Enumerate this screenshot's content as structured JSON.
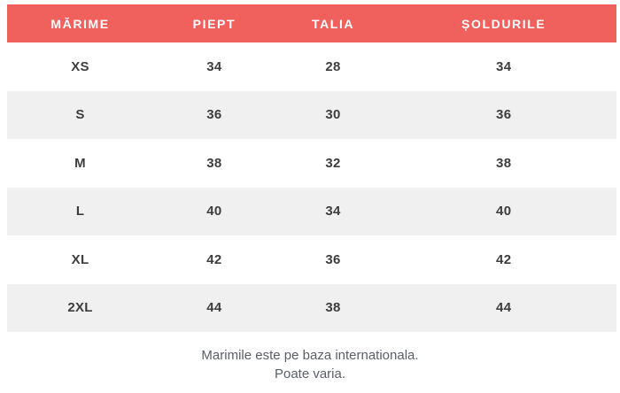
{
  "table": {
    "columns": [
      {
        "label": "MĂRIME"
      },
      {
        "label": "PIEPT"
      },
      {
        "label": "TALIA"
      },
      {
        "label": "ȘOLDURILE"
      }
    ],
    "rows": [
      {
        "size": "XS",
        "chest": "34",
        "waist": "28",
        "hips": "34"
      },
      {
        "size": "S",
        "chest": "36",
        "waist": "30",
        "hips": "36"
      },
      {
        "size": "M",
        "chest": "38",
        "waist": "32",
        "hips": "38"
      },
      {
        "size": "L",
        "chest": "40",
        "waist": "34",
        "hips": "40"
      },
      {
        "size": "XL",
        "chest": "42",
        "waist": "36",
        "hips": "42"
      },
      {
        "size": "2XL",
        "chest": "44",
        "waist": "38",
        "hips": "44"
      }
    ]
  },
  "footer": {
    "line1": "Marimile este pe baza internationala.",
    "line2": "Poate varia."
  },
  "colors": {
    "header_bg": "#f0605d",
    "header_text": "#ffffff",
    "row_alt_bg": "#f0f0f0",
    "body_text": "#3d3d3d",
    "footer_text": "#5a5f66"
  }
}
